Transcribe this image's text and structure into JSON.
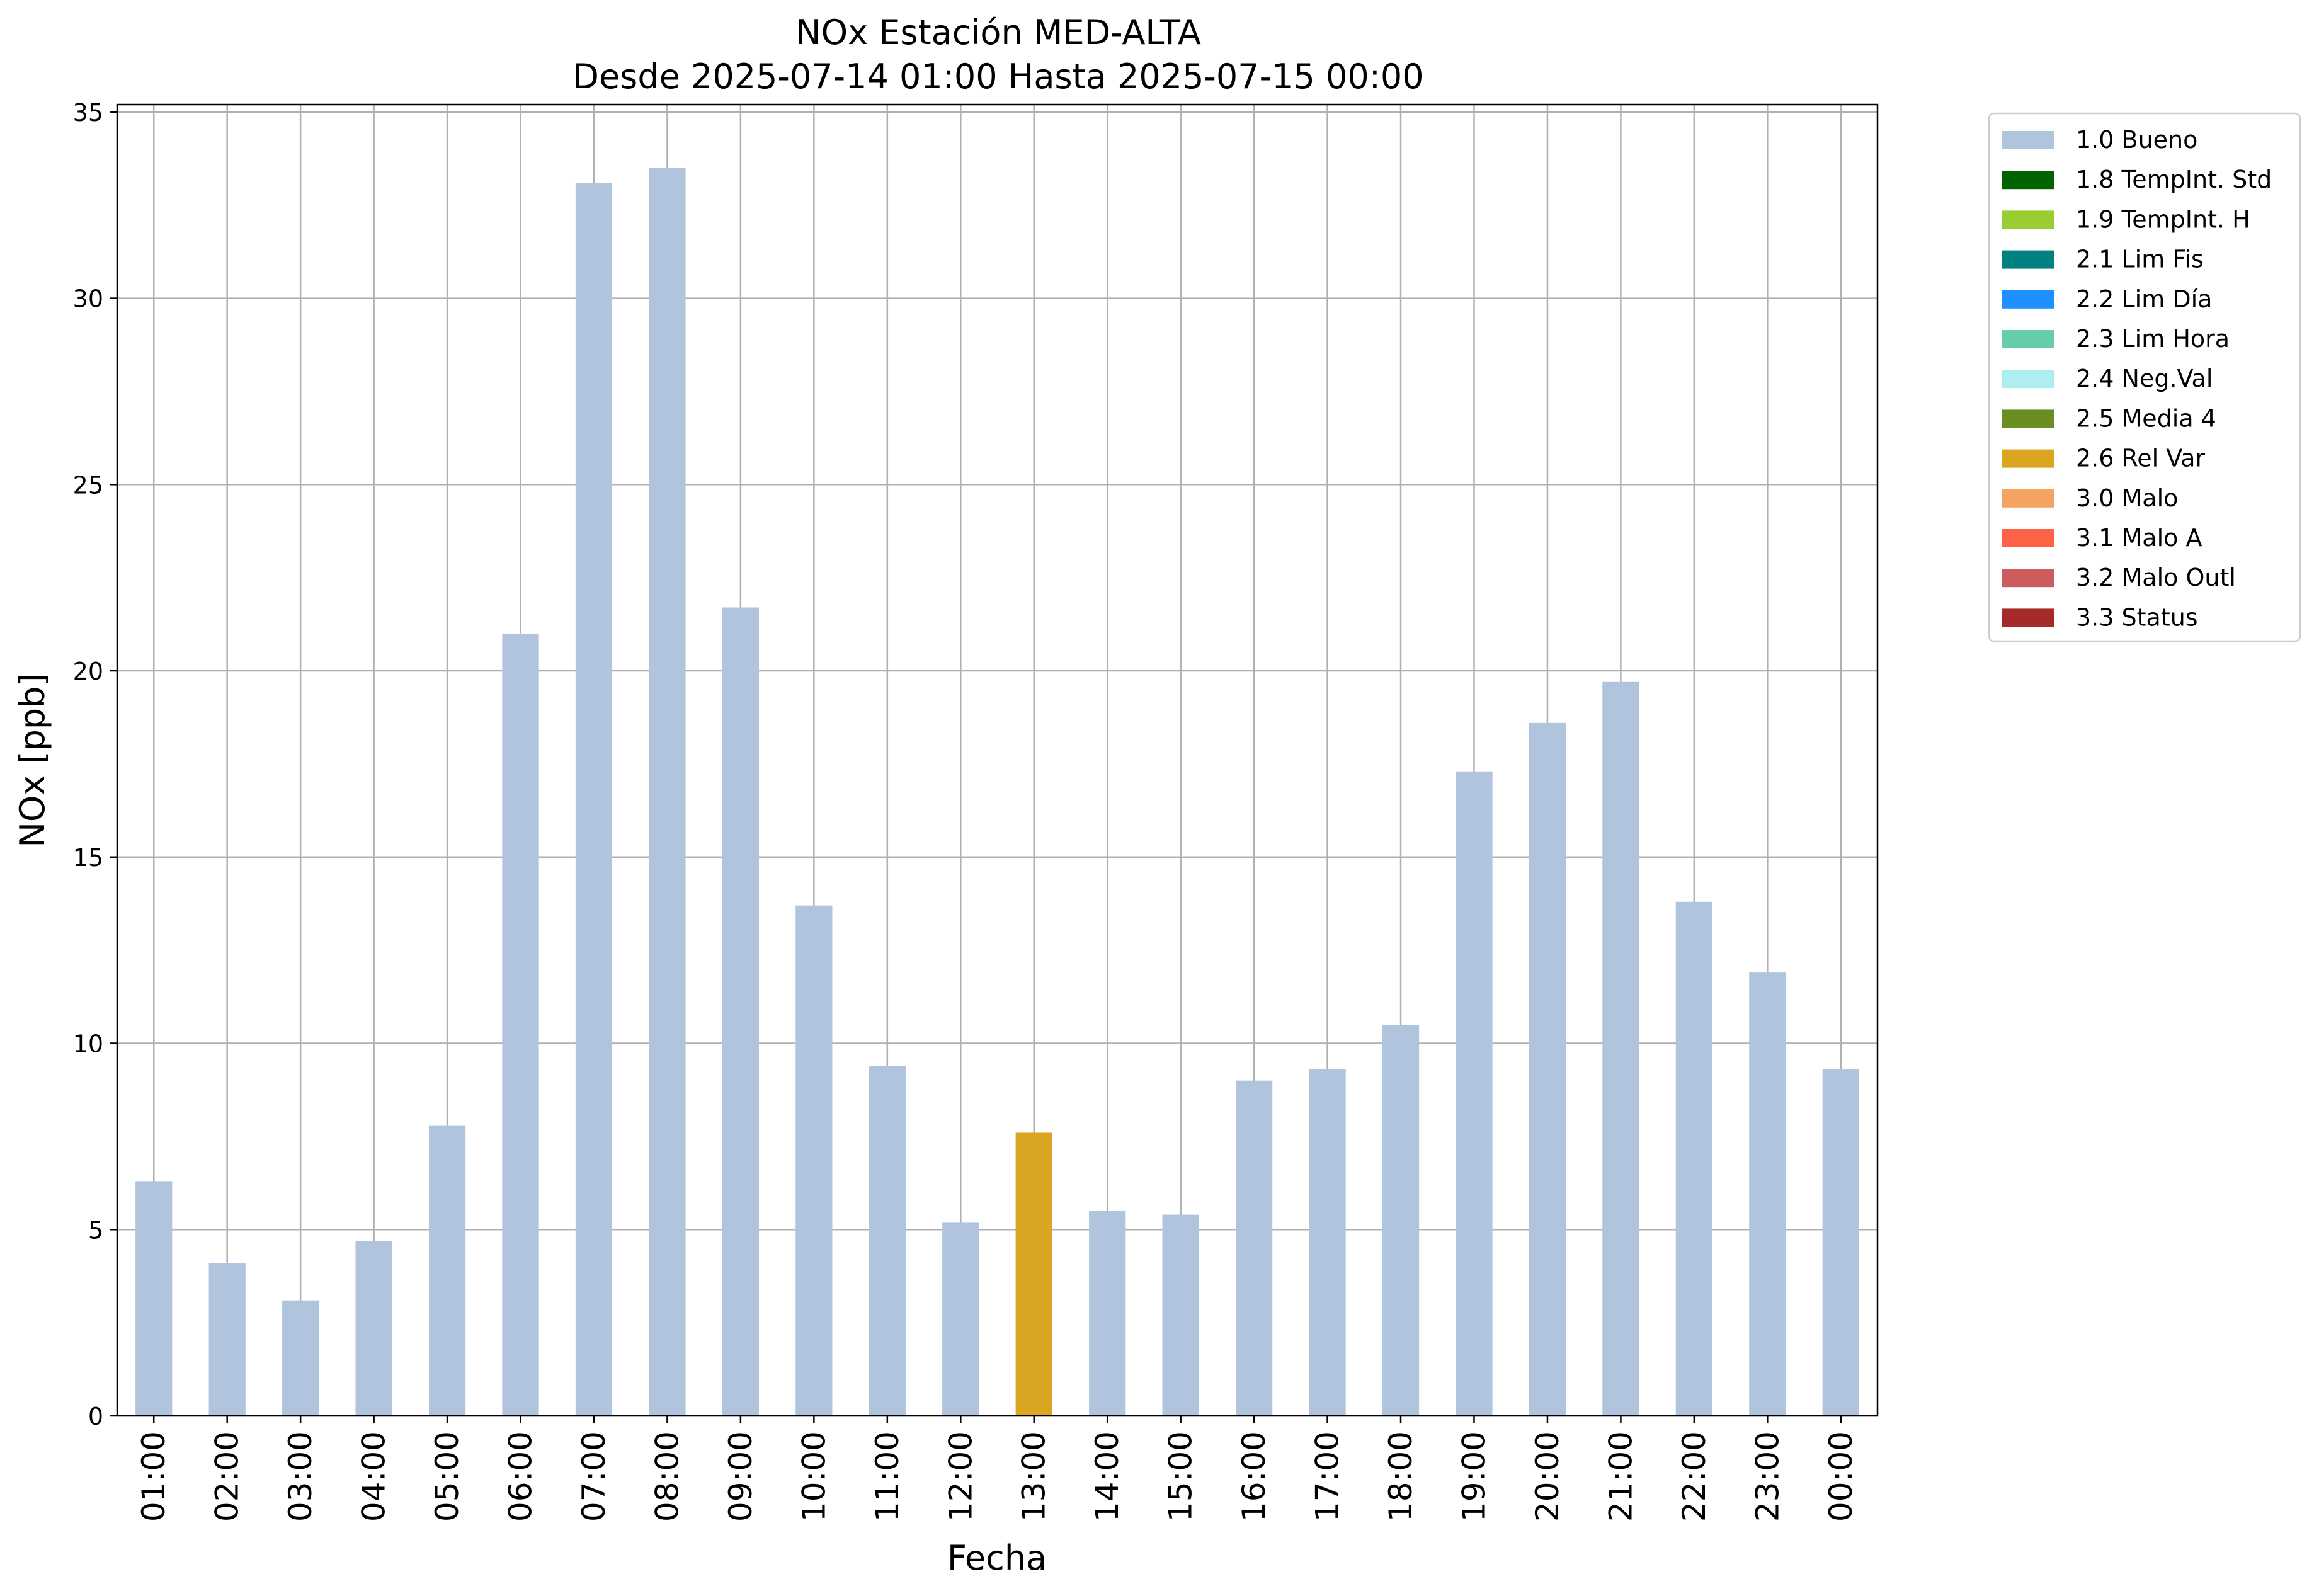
{
  "chart_data": {
    "type": "bar",
    "title": "NOx Estación MED-ALTA",
    "subtitle": "Desde 2025-07-14 01:00 Hasta 2025-07-15 00:00",
    "xlabel": "Fecha",
    "ylabel": "NOx [ppb]",
    "ylim": [
      0,
      35.2
    ],
    "yticks": [
      0,
      5,
      10,
      15,
      20,
      25,
      30,
      35
    ],
    "grid": true,
    "legend_position": "outside-top-right",
    "categories": [
      "01:00",
      "02:00",
      "03:00",
      "04:00",
      "05:00",
      "06:00",
      "07:00",
      "08:00",
      "09:00",
      "10:00",
      "11:00",
      "12:00",
      "13:00",
      "14:00",
      "15:00",
      "16:00",
      "17:00",
      "18:00",
      "19:00",
      "20:00",
      "21:00",
      "22:00",
      "23:00",
      "00:00"
    ],
    "values": [
      6.3,
      4.1,
      3.1,
      4.7,
      7.8,
      21.0,
      33.1,
      33.5,
      21.7,
      13.7,
      9.4,
      5.2,
      7.6,
      5.5,
      5.4,
      9.0,
      9.3,
      10.5,
      17.3,
      18.6,
      19.7,
      13.8,
      11.9,
      9.3
    ],
    "flags": [
      "1.0",
      "1.0",
      "1.0",
      "1.0",
      "1.0",
      "1.0",
      "1.0",
      "1.0",
      "1.0",
      "1.0",
      "1.0",
      "1.0",
      "2.6",
      "1.0",
      "1.0",
      "1.0",
      "1.0",
      "1.0",
      "1.0",
      "1.0",
      "1.0",
      "1.0",
      "1.0",
      "1.0"
    ],
    "legend": [
      {
        "code": "1.0",
        "label": "1.0 Bueno",
        "color": "#b0c4de"
      },
      {
        "code": "1.8",
        "label": "1.8 TempInt. Std",
        "color": "#006400"
      },
      {
        "code": "1.9",
        "label": "1.9 TempInt. H",
        "color": "#9acd32"
      },
      {
        "code": "2.1",
        "label": "2.1 Lim Fis",
        "color": "#008080"
      },
      {
        "code": "2.2",
        "label": "2.2 Lim Día",
        "color": "#1e90ff"
      },
      {
        "code": "2.3",
        "label": "2.3 Lim Hora",
        "color": "#66cdaa"
      },
      {
        "code": "2.4",
        "label": "2.4 Neg.Val",
        "color": "#afeeee"
      },
      {
        "code": "2.5",
        "label": "2.5 Media 4",
        "color": "#6b8e23"
      },
      {
        "code": "2.6",
        "label": "2.6 Rel Var",
        "color": "#daa520"
      },
      {
        "code": "3.0",
        "label": "3.0 Malo",
        "color": "#f4a460"
      },
      {
        "code": "3.1",
        "label": "3.1 Malo A",
        "color": "#ff6347"
      },
      {
        "code": "3.2",
        "label": "3.2 Malo Outl",
        "color": "#cd5c5c"
      },
      {
        "code": "3.3",
        "label": "3.3 Status",
        "color": "#a52a2a"
      }
    ]
  }
}
